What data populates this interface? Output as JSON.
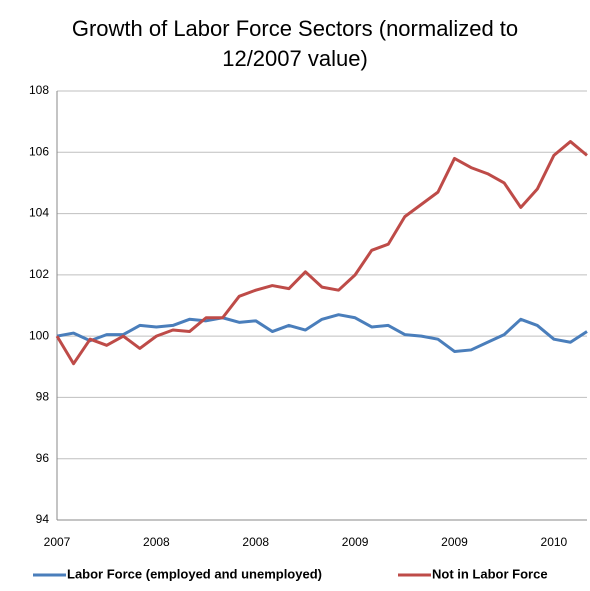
{
  "chart_data": {
    "type": "line",
    "title": "Growth of Labor Force Sectors (normalized to 12/2007 value)",
    "categories": [
      "2007",
      null,
      null,
      null,
      null,
      null,
      "2008",
      null,
      null,
      null,
      null,
      null,
      "2008",
      null,
      null,
      null,
      null,
      null,
      "2009",
      null,
      null,
      null,
      null,
      null,
      "2009",
      null,
      null,
      null,
      null,
      null,
      "2010",
      null,
      null
    ],
    "series": [
      {
        "name": "Labor Force (employed and unemployed)",
        "color": "#4a7ebb",
        "values": [
          100,
          100.1,
          99.85,
          100.05,
          100.05,
          100.35,
          100.3,
          100.35,
          100.55,
          100.5,
          100.6,
          100.45,
          100.5,
          100.15,
          100.35,
          100.2,
          100.55,
          100.7,
          100.6,
          100.3,
          100.35,
          100.05,
          100.0,
          99.9,
          99.5,
          99.55,
          99.8,
          100.05,
          100.55,
          100.35,
          99.9,
          99.8,
          100.15
        ]
      },
      {
        "name": "Not in Labor Force",
        "color": "#be4b48",
        "values": [
          100,
          99.1,
          99.9,
          99.7,
          100,
          99.6,
          100,
          100.2,
          100.15,
          100.6,
          100.6,
          101.3,
          101.5,
          101.65,
          101.55,
          102.1,
          101.6,
          101.5,
          102,
          102.8,
          103,
          103.9,
          104.3,
          104.7,
          105.8,
          105.5,
          105.3,
          105,
          104.2,
          104.8,
          105.9,
          106.35,
          105.9
        ]
      }
    ],
    "ylim": [
      94,
      108
    ],
    "yticks": [
      94,
      96,
      98,
      100,
      102,
      104,
      106,
      108
    ],
    "grid": true,
    "legend": "bottom"
  }
}
